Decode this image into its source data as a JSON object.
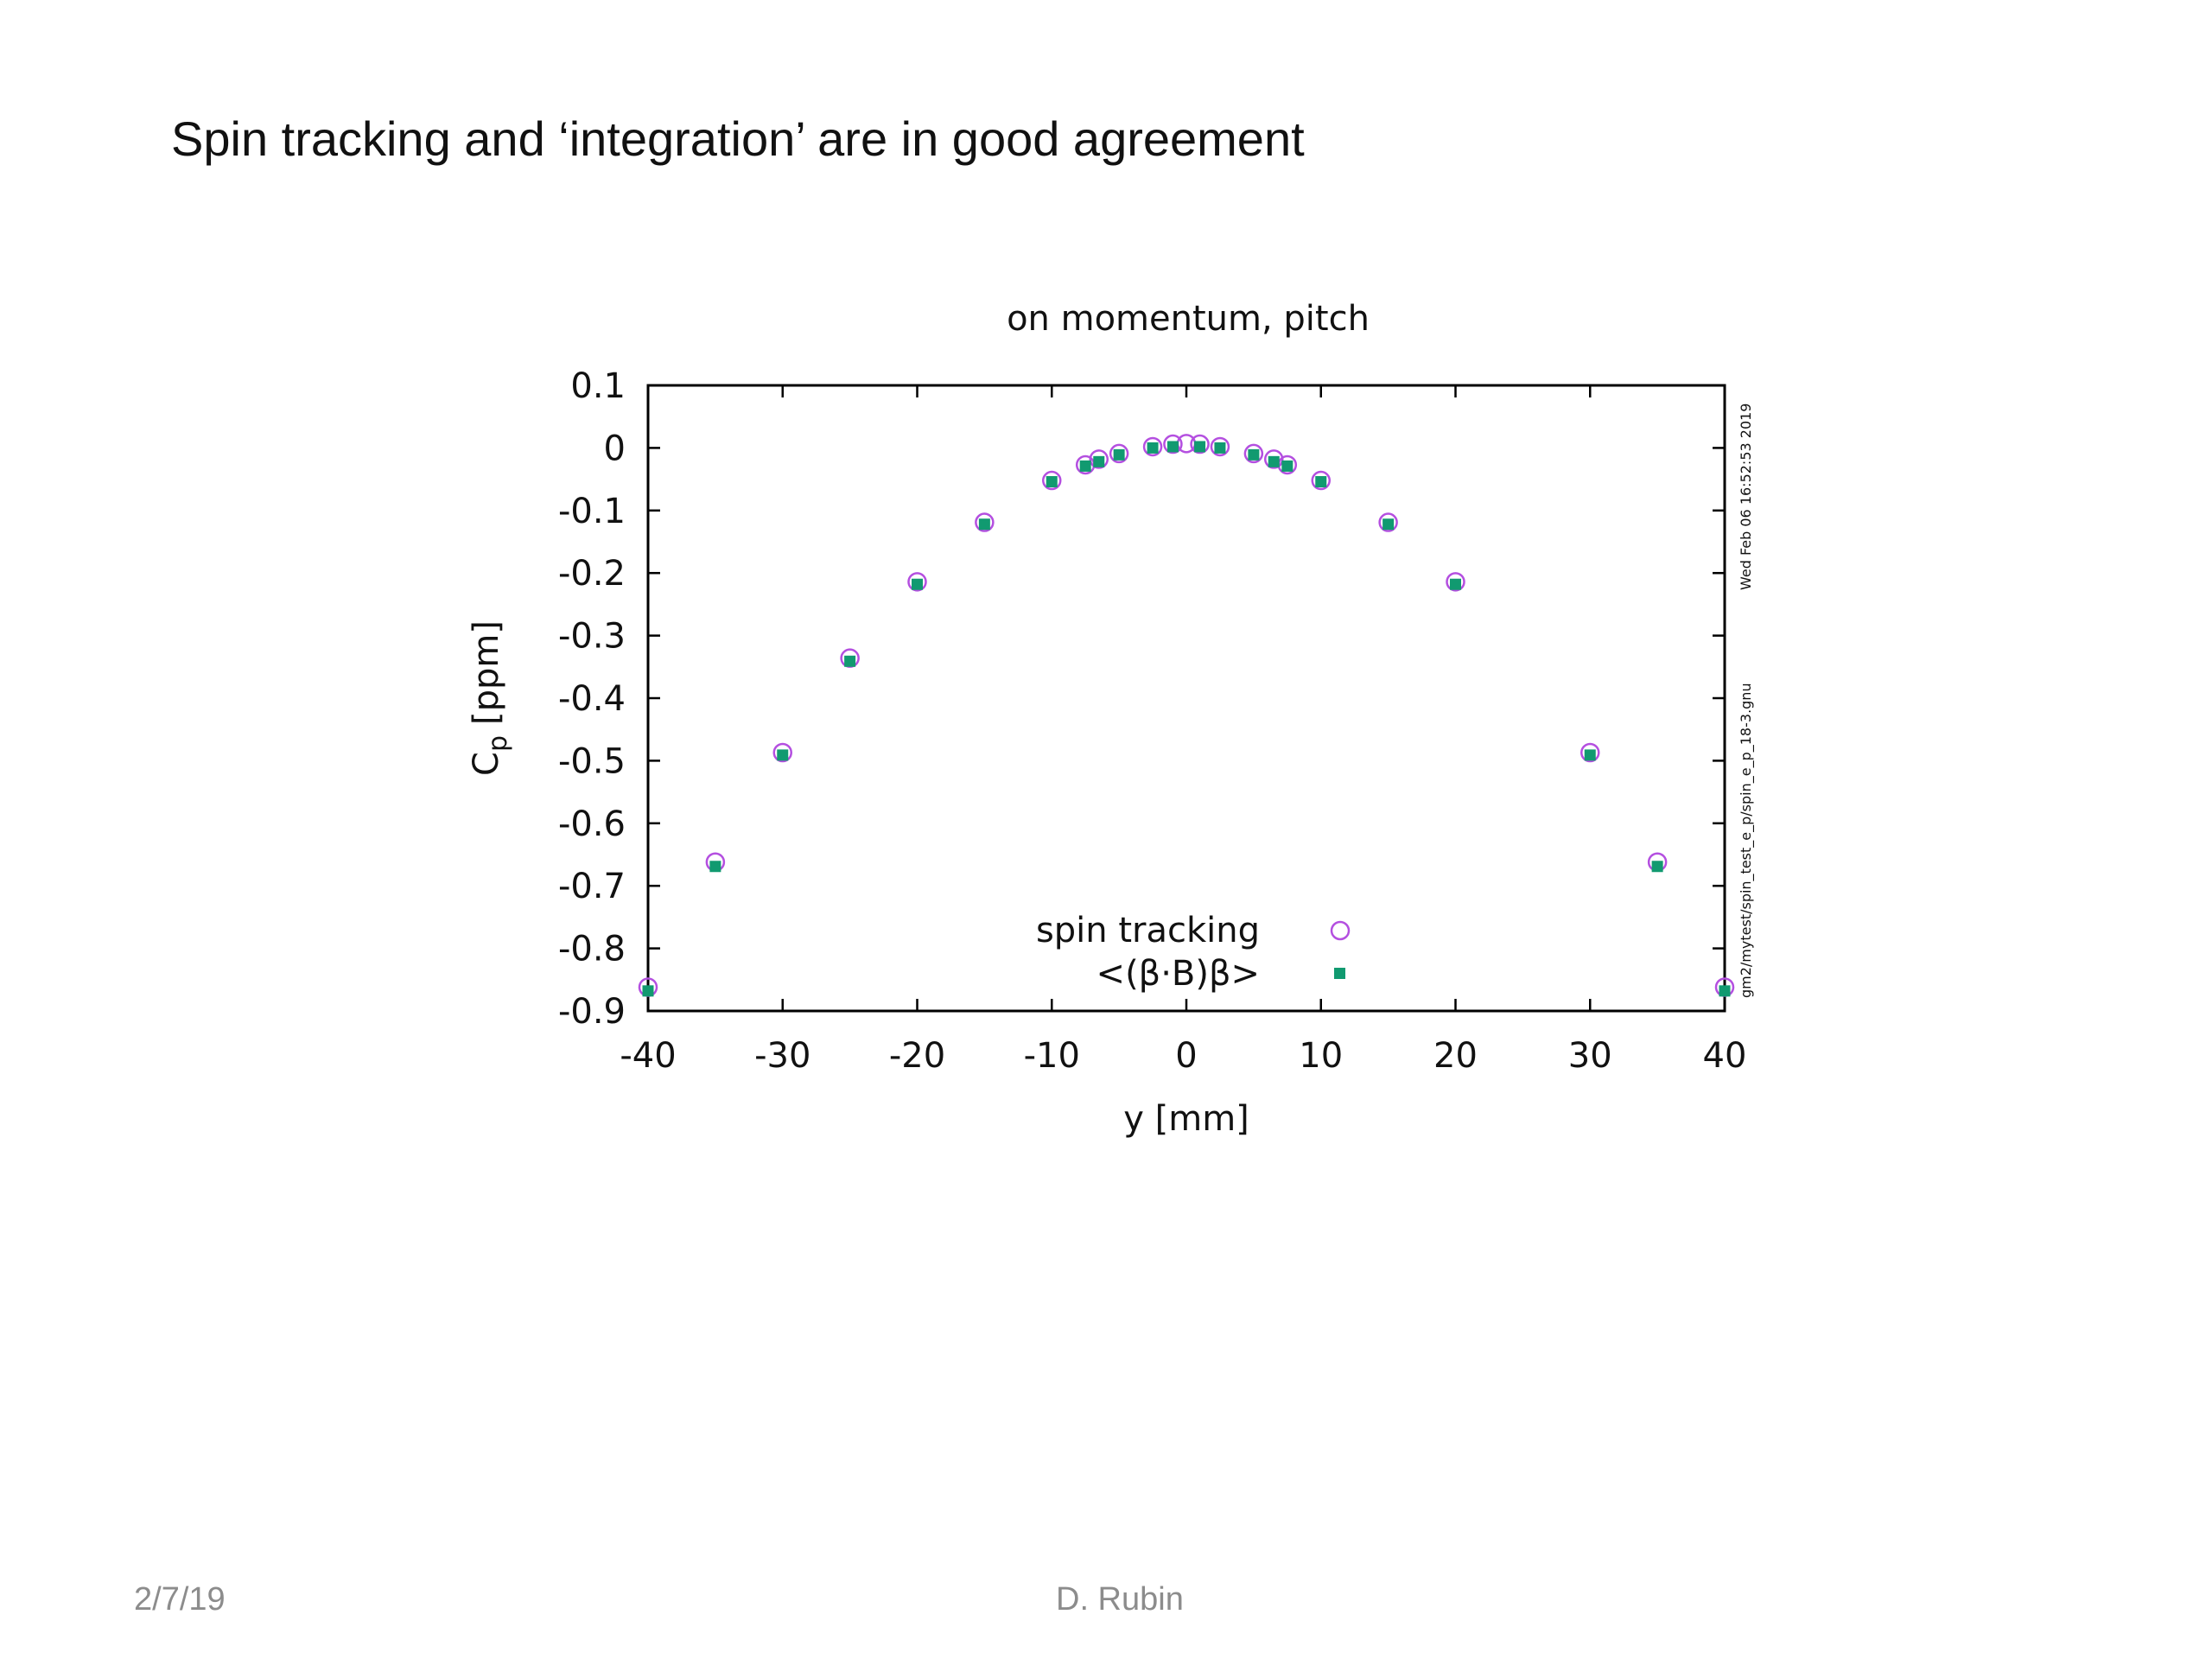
{
  "slide": {
    "title": "Spin tracking and ‘integration’ are in good agreement",
    "footer_date": "2/7/19",
    "footer_author": "D. Rubin"
  },
  "chart_data": {
    "type": "scatter",
    "title": "on momentum, pitch",
    "xlabel": "y [mm]",
    "ylabel_main": "C",
    "ylabel_sub": "p",
    "ylabel_unit": "[ppm]",
    "xlim": [
      -40,
      40
    ],
    "ylim": [
      -0.9,
      0.1
    ],
    "xticks": [
      "-40",
      "-30",
      "-20",
      "-10",
      "0",
      "10",
      "20",
      "30",
      "40"
    ],
    "xtick_values": [
      -40,
      -30,
      -20,
      -10,
      0,
      10,
      20,
      30,
      40
    ],
    "yticks": [
      "0.1",
      "0",
      "-0.1",
      "-0.2",
      "-0.3",
      "-0.4",
      "-0.5",
      "-0.6",
      "-0.7",
      "-0.8",
      "-0.9"
    ],
    "ytick_values": [
      0.1,
      0,
      -0.1,
      -0.2,
      -0.3,
      -0.4,
      -0.5,
      -0.6,
      -0.7,
      -0.8,
      -0.9
    ],
    "grid": false,
    "legend_position": "bottom-center",
    "timestamp": "Wed Feb 06 16:52:53 2019",
    "filepath": "gm2/mytest/spin_test_e_p/spin_e_p_18-3.gnu",
    "series": [
      {
        "name": "spin tracking",
        "marker": "open-circle",
        "color": "#b44fe0",
        "x": [
          -40,
          -35,
          -30,
          -25,
          -20,
          -15,
          -10,
          -7.5,
          -6.5,
          -5,
          -2.5,
          -1,
          0,
          1,
          2.5,
          5,
          6.5,
          7.5,
          10,
          15,
          20,
          30,
          35,
          40
        ],
        "y": [
          -0.862,
          -0.662,
          -0.487,
          -0.336,
          -0.214,
          -0.119,
          -0.052,
          -0.027,
          -0.018,
          -0.009,
          0.002,
          0.006,
          0.007,
          0.006,
          0.002,
          -0.009,
          -0.018,
          -0.027,
          -0.052,
          -0.119,
          -0.214,
          -0.487,
          -0.662,
          -0.862
        ]
      },
      {
        "name": "<(β·B)β>",
        "marker": "filled-square",
        "color": "#119a70",
        "x": [
          -40,
          -35,
          -30,
          -25,
          -20,
          -15,
          -10,
          -7.5,
          -6.5,
          -5,
          -2.5,
          -1,
          1,
          2.5,
          5,
          6.5,
          7.5,
          10,
          15,
          20,
          30,
          35,
          40
        ],
        "y": [
          -0.868,
          -0.669,
          -0.491,
          -0.341,
          -0.218,
          -0.122,
          -0.054,
          -0.029,
          -0.022,
          -0.011,
          0.0,
          0.002,
          0.002,
          0.0,
          -0.011,
          -0.022,
          -0.029,
          -0.054,
          -0.122,
          -0.218,
          -0.491,
          -0.669,
          -0.868
        ]
      }
    ]
  }
}
